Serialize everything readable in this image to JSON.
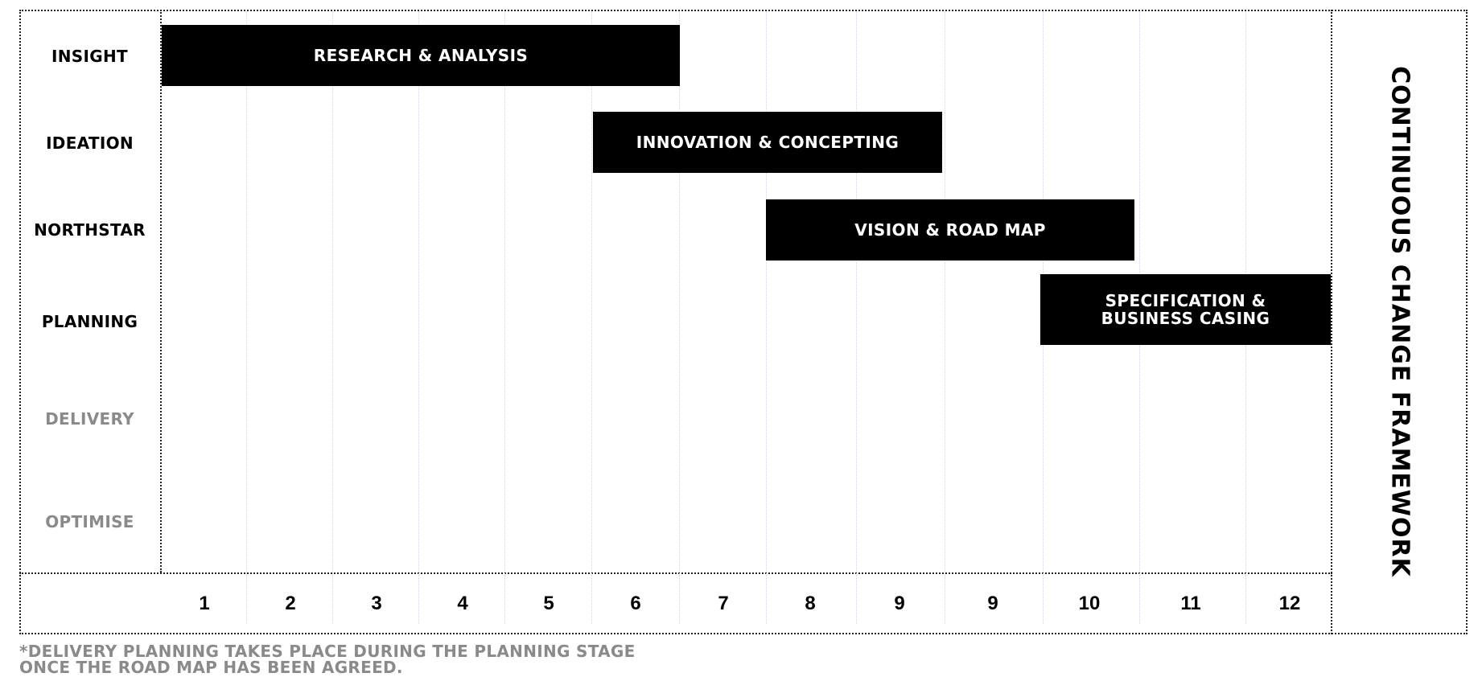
{
  "title": "CONTINUOUS CHANGE FRAMEWORK",
  "phases": [
    {
      "label": "INSIGHT",
      "style": "strong"
    },
    {
      "label": "IDEATION",
      "style": "strong"
    },
    {
      "label": "NORTHSTAR",
      "style": "strong"
    },
    {
      "label": "PLANNING",
      "style": "strong"
    },
    {
      "label": "DELIVERY",
      "style": "dim"
    },
    {
      "label": "OPTIMISE",
      "style": "dim"
    }
  ],
  "tasks": [
    {
      "line1": "RESEARCH & ANALYSIS",
      "line2": ""
    },
    {
      "line1": "INNOVATION & CONCEPTING",
      "line2": ""
    },
    {
      "line1": "VISION & ROAD MAP",
      "line2": ""
    },
    {
      "line1": "SPECIFICATION &",
      "line2": "BUSINESS CASING"
    }
  ],
  "timeline": [
    "1",
    "2",
    "3",
    "4",
    "5",
    "6",
    "7",
    "8",
    "9",
    "9",
    "10",
    "11",
    "12"
  ],
  "footnote": {
    "line1": "*DELIVERY PLANNING TAKES PLACE DURING THE PLANNING STAGE",
    "line2": "ONCE THE ROAD MAP HAS BEEN AGREED."
  },
  "colors": {
    "bar": "#000000",
    "dim_text": "#8a8a8a",
    "grid": "#c9d6e3"
  }
}
